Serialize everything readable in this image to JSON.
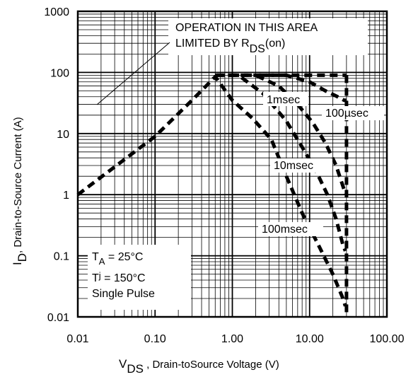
{
  "chart_data": {
    "type": "line",
    "x_scale": "log",
    "y_scale": "log",
    "xlim": [
      0.01,
      100
    ],
    "ylim": [
      0.01,
      1000
    ],
    "grid": true,
    "x_ticks": [
      "0.01",
      "0.10",
      "1.00",
      "10.00",
      "100.00"
    ],
    "y_ticks": [
      "1000",
      "100",
      "10",
      "1",
      "0.1",
      "0.01"
    ],
    "xlabel_main": "V",
    "xlabel_sub": "DS",
    "xlabel_rest": " , Drain-toSource Voltage (V)",
    "ylabel_main": "I",
    "ylabel_sub": "D",
    "ylabel_rest": ",  Drain-to-Source Current (A)",
    "annotation_line1": "OPERATION IN THIS AREA",
    "annotation_line2": "LIMITED BY R",
    "annotation_sub": "DS",
    "annotation_tail": "(on)",
    "conditions": {
      "ta_main": "T",
      "ta_sub": "A",
      "ta_rest": " = 25°C",
      "tj_main": "T",
      "tj_sub": "j",
      "tj_rest": " = 150°C",
      "pulse": "Single Pulse"
    },
    "current_limit": {
      "x": [
        0.6,
        30
      ],
      "y": [
        90,
        90
      ]
    },
    "series": [
      {
        "name": "100µsec",
        "x": [
          2.2,
          5,
          10,
          16,
          23,
          28,
          30
        ],
        "y": [
          90,
          90,
          70,
          50,
          40,
          35,
          35
        ]
      },
      {
        "name": "1msec",
        "x": [
          0.97,
          2,
          4,
          7,
          11,
          16,
          22,
          28,
          29
        ],
        "y": [
          90,
          90,
          60,
          30,
          15,
          7,
          3,
          1.2,
          1
        ]
      },
      {
        "name": "10msec",
        "x": [
          0.63,
          1.2,
          2.5,
          5,
          8,
          12,
          17,
          22,
          27,
          29
        ],
        "y": [
          90,
          90,
          45,
          16,
          6,
          2.5,
          1,
          0.4,
          0.15,
          0.12
        ]
      },
      {
        "name": "100msec",
        "x": [
          0.01,
          0.1,
          0.3,
          0.6,
          1.0,
          1.8,
          3.2,
          5,
          8,
          13,
          20,
          27,
          29
        ],
        "y": [
          1,
          9,
          35,
          85,
          35,
          18,
          8,
          2,
          0.5,
          0.15,
          0.05,
          0.02,
          0.015
        ]
      }
    ],
    "dc_line": {
      "x": [
        30,
        30
      ],
      "y": [
        90,
        0.01
      ]
    },
    "curve_labels": [
      "1msec",
      "100µsec",
      "10msec",
      "100msec"
    ]
  }
}
